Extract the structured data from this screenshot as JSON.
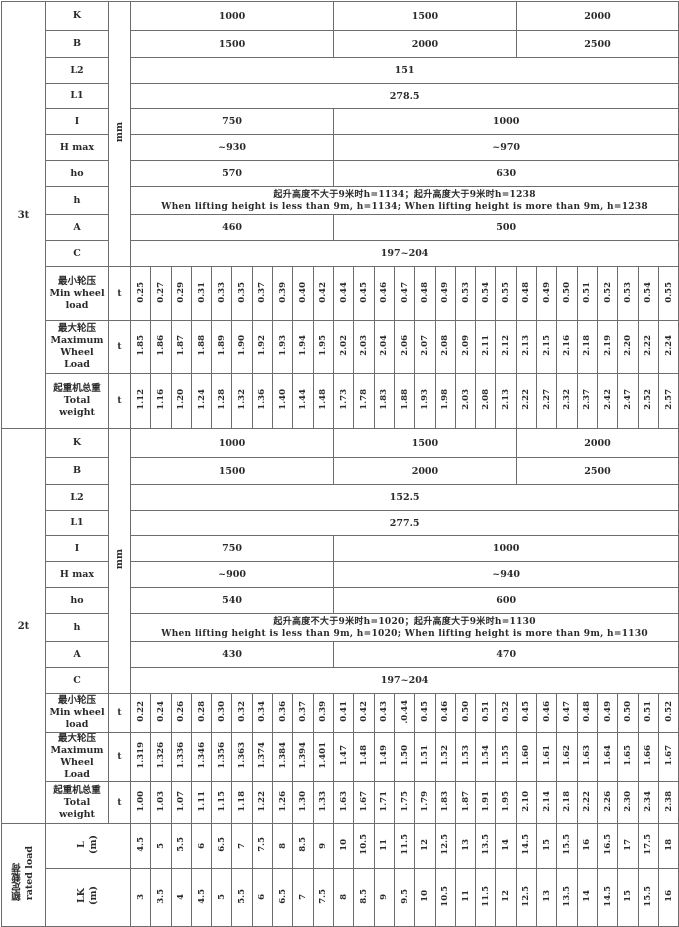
{
  "sections": [
    {
      "label": "3t",
      "unit_mm": "mm",
      "params": [
        {
          "name": "K",
          "cells": [
            {
              "v": "1000",
              "span": 10
            },
            {
              "v": "1500",
              "span": 9
            },
            {
              "v": "2000",
              "span": 8
            }
          ]
        },
        {
          "name": "B",
          "cells": [
            {
              "v": "1500",
              "span": 10
            },
            {
              "v": "2000",
              "span": 9
            },
            {
              "v": "2500",
              "span": 8
            }
          ]
        },
        {
          "name": "L2",
          "cells": [
            {
              "v": "151",
              "span": 27
            }
          ]
        },
        {
          "name": "L1",
          "cells": [
            {
              "v": "278.5",
              "span": 27
            }
          ]
        },
        {
          "name": "I",
          "cells": [
            {
              "v": "750",
              "span": 10
            },
            {
              "v": "1000",
              "span": 17
            }
          ]
        },
        {
          "name": "H max",
          "cells": [
            {
              "v": "~930",
              "span": 10
            },
            {
              "v": "~970",
              "span": 17
            }
          ]
        },
        {
          "name": "ho",
          "cells": [
            {
              "v": "570",
              "span": 10
            },
            {
              "v": "630",
              "span": 17
            }
          ]
        },
        {
          "name": "h",
          "note": [
            "起升高度不大于9米时h=1134；起升高度大于9米时h=1238",
            "When lifting height is less than 9m, h=1134; When lifting height is more than 9m, h=1238"
          ]
        },
        {
          "name": "A",
          "cells": [
            {
              "v": "460",
              "span": 10
            },
            {
              "v": "500",
              "span": 17
            }
          ]
        },
        {
          "name": "C",
          "cells": [
            {
              "v": "197~204",
              "span": 27
            }
          ]
        }
      ],
      "loads": [
        {
          "name_cn": "最小轮压",
          "name_en": [
            "Min wheel",
            "load"
          ],
          "unit": "t",
          "values": [
            "0.25",
            "0.27",
            "0.29",
            "0.31",
            "0.33",
            "0.35",
            "0.37",
            "0.39",
            "0.40",
            "0.42",
            "0.44",
            "0.45",
            "0.46",
            "0.47",
            "0.48",
            "0.49",
            "0.53",
            "0.54",
            "0.55",
            "0.48",
            "0.49",
            "0.50",
            "0.51",
            "0.52",
            "0.53",
            "0.54",
            "0.55"
          ]
        },
        {
          "name_cn": "最大轮压",
          "name_en": [
            "Maximum",
            "Wheel Load"
          ],
          "unit": "t",
          "values": [
            "1.85",
            "1.86",
            "1.87",
            "1.88",
            "1.89",
            "1.90",
            "1.92",
            "1.93",
            "1.94",
            "1.95",
            "2.02",
            "2.03",
            "2.04",
            "2.06",
            "2.07",
            "2.08",
            "2.09",
            "2.11",
            "2.12",
            "2.13",
            "2.15",
            "2.16",
            "2.18",
            "2.19",
            "2.20",
            "2.22",
            "2.24"
          ]
        },
        {
          "name_cn": "起重机总重",
          "name_en": [
            "Total",
            "weight"
          ],
          "unit": "t",
          "values": [
            "1.12",
            "1.16",
            "1.20",
            "1.24",
            "1.28",
            "1.32",
            "1.36",
            "1.40",
            "1.44",
            "1.48",
            "1.73",
            "1.78",
            "1.83",
            "1.88",
            "1.93",
            "1.98",
            "2.03",
            "2.08",
            "2.13",
            "2.22",
            "2.27",
            "2.32",
            "2.37",
            "2.42",
            "2.47",
            "2.52",
            "2.57"
          ]
        }
      ]
    },
    {
      "label": "2t",
      "unit_mm": "mm",
      "params": [
        {
          "name": "K",
          "cells": [
            {
              "v": "1000",
              "span": 10
            },
            {
              "v": "1500",
              "span": 9
            },
            {
              "v": "2000",
              "span": 8
            }
          ]
        },
        {
          "name": "B",
          "cells": [
            {
              "v": "1500",
              "span": 10
            },
            {
              "v": "2000",
              "span": 9
            },
            {
              "v": "2500",
              "span": 8
            }
          ]
        },
        {
          "name": "L2",
          "cells": [
            {
              "v": "152.5",
              "span": 27
            }
          ]
        },
        {
          "name": "L1",
          "cells": [
            {
              "v": "277.5",
              "span": 27
            }
          ]
        },
        {
          "name": "I",
          "cells": [
            {
              "v": "750",
              "span": 10
            },
            {
              "v": "1000",
              "span": 17
            }
          ]
        },
        {
          "name": "H max",
          "cells": [
            {
              "v": "~900",
              "span": 10
            },
            {
              "v": "~940",
              "span": 17
            }
          ]
        },
        {
          "name": "ho",
          "cells": [
            {
              "v": "540",
              "span": 10
            },
            {
              "v": "600",
              "span": 17
            }
          ]
        },
        {
          "name": "h",
          "note": [
            "起升高度不大于9米时h=1020；起升高度大于9米时h=1130",
            "When lifting height is less than 9m, h=1020; When lifting height is more than 9m, h=1130"
          ]
        },
        {
          "name": "A",
          "cells": [
            {
              "v": "430",
              "span": 10
            },
            {
              "v": "470",
              "span": 17
            }
          ]
        },
        {
          "name": "C",
          "cells": [
            {
              "v": "197~204",
              "span": 27
            }
          ]
        }
      ],
      "loads": [
        {
          "name_cn": "最小轮压",
          "name_en": [
            "Min wheel",
            "load"
          ],
          "unit": "t",
          "values": [
            "0.22",
            "0.24",
            "0.26",
            "0.28",
            "0.30",
            "0.32",
            "0.34",
            "0.36",
            "0.37",
            "0.39",
            "0.41",
            "0.42",
            "0.43",
            ".0.44",
            "0.45",
            "0.46",
            "0.50",
            "0.51",
            "0.52",
            "0.45",
            "0.46",
            "0.47",
            "0.48",
            "0.49",
            "0.50",
            "0.51",
            "0.52"
          ]
        },
        {
          "name_cn": "最大轮压",
          "name_en": [
            "Maximum",
            "Wheel Load"
          ],
          "unit": "t",
          "values": [
            "1.319",
            "1.326",
            "1.336",
            "1.346",
            "1.356",
            "1.363",
            "1.374",
            "1.384",
            "1.394",
            "1.401",
            "1.47",
            "1.48",
            "1.49",
            "1.50",
            "1.51",
            "1.52",
            "1.53",
            "1.54",
            "1.55",
            "1.60",
            "1.61",
            "1.62",
            "1.63",
            "1.64",
            "1.65",
            "1.66",
            "1.67"
          ]
        },
        {
          "name_cn": "起重机总重",
          "name_en": [
            "Total",
            "weight"
          ],
          "unit": "t",
          "values": [
            "1.00",
            "1.03",
            "1.07",
            "1.11",
            "1.15",
            "1.18",
            "1.22",
            "1.26",
            "1.30",
            "1.33",
            "1.63",
            "1.67",
            "1.71",
            "1.75",
            "1.79",
            "1.83",
            "1.87",
            "1.91",
            "1.95",
            "2.10",
            "2.14",
            "2.18",
            "2.22",
            "2.26",
            "2.30",
            "2.34",
            "2.38"
          ]
        }
      ]
    }
  ],
  "rated_load": {
    "label_cn": "额定载荷",
    "label_en": "rated load",
    "rows": [
      {
        "name": "L",
        "unit": "(m)",
        "values": [
          "4.5",
          "5",
          "5.5",
          "6",
          "6.5",
          "7",
          "7.5",
          "8",
          "8.5",
          "9",
          "10",
          "10.5",
          "11",
          "11.5",
          "12",
          "12.5",
          "13",
          "13.5",
          "14",
          "14.5",
          "15",
          "15.5",
          "16",
          "16.5",
          "17",
          "17.5",
          "18"
        ]
      },
      {
        "name": "LK",
        "unit": "(m)",
        "values": [
          "3",
          "3.5",
          "4",
          "4.5",
          "5",
          "5.5",
          "6",
          "6.5",
          "7",
          "7.5",
          "8",
          "8.5",
          "9",
          "9.5",
          "10",
          "10.5",
          "11",
          "11.5",
          "12",
          "12.5",
          "13",
          "13.5",
          "14",
          "14.5",
          "15",
          "15.5",
          "16"
        ]
      }
    ]
  }
}
